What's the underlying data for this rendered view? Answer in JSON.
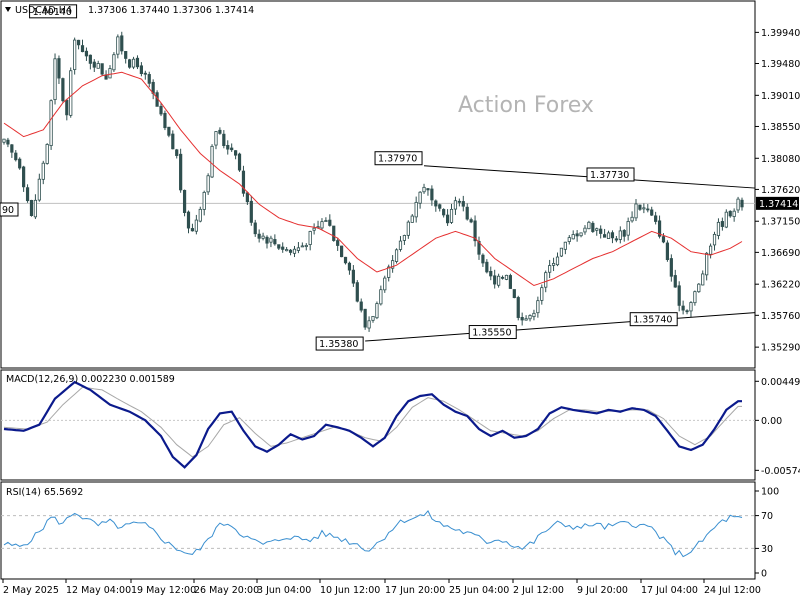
{
  "header": {
    "symbol": "USDCAD,H4",
    "ohlc": "1.37306 1.37440 1.37306 1.37414"
  },
  "watermark": "Action Forex",
  "colors": {
    "candles": "#2f4f4f",
    "ma": "#e53030",
    "macd": "#0b1a8c",
    "signal": "#a8a8a8",
    "rsi": "#3a8fd0",
    "trendline": "#000000",
    "price_line": "#c0c0c0"
  },
  "chart_data": [
    {
      "type": "candlestick",
      "title": "USDCAD,H4",
      "price_axis_labels": [
        "1.39940",
        "1.39480",
        "1.39010",
        "1.38550",
        "1.38080",
        "1.37620",
        "1.37150",
        "1.36690",
        "1.36220",
        "1.35760",
        "1.35290"
      ],
      "ylim": [
        1.351,
        1.403
      ],
      "current_price": "1.37414",
      "left_cut_label": "90",
      "date_labels": [
        "2 May 2025",
        "12 May 04:00",
        "19 May 12:00",
        "26 May 20:00",
        "3 Jun 04:00",
        "10 Jun 12:00",
        "17 Jun 20:00",
        "25 Jun 04:00",
        "2 Jul 12:00",
        "9 Jul 20:00",
        "17 Jul 04:00",
        "24 Jul 12:00"
      ],
      "annotations": [
        {
          "text": "1.40140",
          "bar": 19,
          "price": 1.4014
        },
        {
          "text": "1.37970",
          "bar": 107,
          "price": 1.3797
        },
        {
          "text": "1.37730",
          "bar": 161,
          "price": 1.3773
        },
        {
          "text": "1.35380",
          "bar": 92,
          "price": 1.3538
        },
        {
          "text": "1.35550",
          "bar": 131,
          "price": 1.3555
        },
        {
          "text": "1.35740",
          "bar": 172,
          "price": 1.3574
        }
      ],
      "trendlines": [
        {
          "from": {
            "bar": 107,
            "price": 1.3797
          },
          "to": {
            "bar": 198,
            "price": 1.3764
          }
        },
        {
          "from": {
            "bar": 92,
            "price": 1.3538
          },
          "to": {
            "bar": 198,
            "price": 1.358
          }
        }
      ],
      "close_keypoints": [
        [
          0,
          1.383
        ],
        [
          4,
          1.38
        ],
        [
          7,
          1.372
        ],
        [
          11,
          1.383
        ],
        [
          13,
          1.395
        ],
        [
          16,
          1.387
        ],
        [
          18,
          1.399
        ],
        [
          20,
          1.396
        ],
        [
          23,
          1.395
        ],
        [
          26,
          1.393
        ],
        [
          29,
          1.398
        ],
        [
          32,
          1.395
        ],
        [
          35,
          1.394
        ],
        [
          38,
          1.39
        ],
        [
          41,
          1.385
        ],
        [
          44,
          1.381
        ],
        [
          46,
          1.372
        ],
        [
          48,
          1.37
        ],
        [
          51,
          1.376
        ],
        [
          54,
          1.385
        ],
        [
          56,
          1.383
        ],
        [
          59,
          1.382
        ],
        [
          61,
          1.376
        ],
        [
          64,
          1.37
        ],
        [
          67,
          1.369
        ],
        [
          70,
          1.368
        ],
        [
          73,
          1.367
        ],
        [
          76,
          1.368
        ],
        [
          79,
          1.37
        ],
        [
          82,
          1.372
        ],
        [
          85,
          1.368
        ],
        [
          88,
          1.365
        ],
        [
          90,
          1.36
        ],
        [
          92,
          1.356
        ],
        [
          95,
          1.359
        ],
        [
          98,
          1.364
        ],
        [
          101,
          1.368
        ],
        [
          104,
          1.373
        ],
        [
          107,
          1.377
        ],
        [
          110,
          1.373
        ],
        [
          113,
          1.372
        ],
        [
          116,
          1.375
        ],
        [
          119,
          1.371
        ],
        [
          122,
          1.365
        ],
        [
          125,
          1.362
        ],
        [
          128,
          1.364
        ],
        [
          131,
          1.358
        ],
        [
          134,
          1.357
        ],
        [
          137,
          1.362
        ],
        [
          140,
          1.366
        ],
        [
          143,
          1.368
        ],
        [
          146,
          1.37
        ],
        [
          149,
          1.371
        ],
        [
          152,
          1.37
        ],
        [
          155,
          1.369
        ],
        [
          158,
          1.37
        ],
        [
          161,
          1.374
        ],
        [
          164,
          1.373
        ],
        [
          167,
          1.37
        ],
        [
          169,
          1.366
        ],
        [
          171,
          1.361
        ],
        [
          173,
          1.3585
        ],
        [
          175,
          1.3595
        ],
        [
          177,
          1.362
        ],
        [
          179,
          1.366
        ],
        [
          181,
          1.37
        ],
        [
          183,
          1.3715
        ],
        [
          185,
          1.373
        ],
        [
          187,
          1.3741
        ]
      ],
      "ma_keypoints": [
        [
          0,
          1.386
        ],
        [
          5,
          1.384
        ],
        [
          10,
          1.385
        ],
        [
          15,
          1.389
        ],
        [
          20,
          1.3915
        ],
        [
          25,
          1.393
        ],
        [
          30,
          1.3935
        ],
        [
          35,
          1.3925
        ],
        [
          40,
          1.389
        ],
        [
          45,
          1.385
        ],
        [
          50,
          1.3815
        ],
        [
          55,
          1.379
        ],
        [
          60,
          1.377
        ],
        [
          65,
          1.374
        ],
        [
          70,
          1.372
        ],
        [
          75,
          1.371
        ],
        [
          80,
          1.3705
        ],
        [
          85,
          1.369
        ],
        [
          90,
          1.366
        ],
        [
          95,
          1.364
        ],
        [
          100,
          1.365
        ],
        [
          105,
          1.367
        ],
        [
          110,
          1.369
        ],
        [
          115,
          1.37
        ],
        [
          120,
          1.369
        ],
        [
          125,
          1.366
        ],
        [
          130,
          1.364
        ],
        [
          135,
          1.362
        ],
        [
          140,
          1.363
        ],
        [
          145,
          1.3645
        ],
        [
          150,
          1.366
        ],
        [
          155,
          1.367
        ],
        [
          160,
          1.3685
        ],
        [
          165,
          1.37
        ],
        [
          170,
          1.369
        ],
        [
          175,
          1.367
        ],
        [
          180,
          1.3665
        ],
        [
          185,
          1.3675
        ],
        [
          188,
          1.3685
        ]
      ]
    },
    {
      "type": "line",
      "title": "MACD(12,26,9) 0.002230 0.001589",
      "axis_labels": [
        "0.004492",
        "0.00",
        "-0.005748"
      ],
      "ylim": [
        -0.0064,
        0.0051
      ],
      "series": [
        {
          "name": "MACD",
          "keypoints": [
            [
              0,
              -0.001
            ],
            [
              5,
              -0.0012
            ],
            [
              9,
              -0.0005
            ],
            [
              13,
              0.0025
            ],
            [
              18,
              0.0044
            ],
            [
              22,
              0.0035
            ],
            [
              27,
              0.0018
            ],
            [
              32,
              0.001
            ],
            [
              36,
              0.0
            ],
            [
              40,
              -0.0018
            ],
            [
              43,
              -0.0042
            ],
            [
              46,
              -0.0054
            ],
            [
              49,
              -0.004
            ],
            [
              52,
              -0.001
            ],
            [
              55,
              0.0008
            ],
            [
              58,
              0.001
            ],
            [
              61,
              -0.0012
            ],
            [
              64,
              -0.003
            ],
            [
              67,
              -0.0036
            ],
            [
              70,
              -0.0028
            ],
            [
              73,
              -0.0016
            ],
            [
              76,
              -0.0022
            ],
            [
              79,
              -0.0018
            ],
            [
              82,
              -0.0005
            ],
            [
              85,
              -0.0008
            ],
            [
              88,
              -0.0012
            ],
            [
              91,
              -0.002
            ],
            [
              94,
              -0.003
            ],
            [
              97,
              -0.002
            ],
            [
              100,
              0.0005
            ],
            [
              103,
              0.0022
            ],
            [
              106,
              0.0028
            ],
            [
              109,
              0.003
            ],
            [
              112,
              0.0018
            ],
            [
              115,
              0.001
            ],
            [
              118,
              0.0005
            ],
            [
              121,
              -0.001
            ],
            [
              124,
              -0.0018
            ],
            [
              127,
              -0.0012
            ],
            [
              130,
              -0.002
            ],
            [
              133,
              -0.0018
            ],
            [
              136,
              -0.001
            ],
            [
              139,
              0.0008
            ],
            [
              142,
              0.0015
            ],
            [
              145,
              0.0012
            ],
            [
              148,
              0.001
            ],
            [
              151,
              0.0008
            ],
            [
              154,
              0.0012
            ],
            [
              157,
              0.001
            ],
            [
              160,
              0.0014
            ],
            [
              163,
              0.0012
            ],
            [
              166,
              0.0005
            ],
            [
              169,
              -0.0012
            ],
            [
              172,
              -0.003
            ],
            [
              175,
              -0.0034
            ],
            [
              178,
              -0.0028
            ],
            [
              181,
              -0.001
            ],
            [
              184,
              0.0012
            ],
            [
              187,
              0.0022
            ]
          ]
        },
        {
          "name": "Signal",
          "keypoints": [
            [
              0,
              -0.0008
            ],
            [
              6,
              -0.001
            ],
            [
              11,
              -0.0002
            ],
            [
              15,
              0.0018
            ],
            [
              20,
              0.0038
            ],
            [
              25,
              0.0035
            ],
            [
              30,
              0.0022
            ],
            [
              35,
              0.001
            ],
            [
              40,
              -0.0008
            ],
            [
              44,
              -0.0028
            ],
            [
              48,
              -0.0042
            ],
            [
              52,
              -0.003
            ],
            [
              56,
              -0.0005
            ],
            [
              60,
              0.0003
            ],
            [
              64,
              -0.0015
            ],
            [
              68,
              -0.003
            ],
            [
              72,
              -0.0026
            ],
            [
              76,
              -0.002
            ],
            [
              80,
              -0.0014
            ],
            [
              84,
              -0.0008
            ],
            [
              88,
              -0.0012
            ],
            [
              92,
              -0.002
            ],
            [
              96,
              -0.0024
            ],
            [
              100,
              -0.0008
            ],
            [
              104,
              0.0015
            ],
            [
              108,
              0.0026
            ],
            [
              112,
              0.0022
            ],
            [
              116,
              0.0012
            ],
            [
              120,
              0.0
            ],
            [
              124,
              -0.0012
            ],
            [
              128,
              -0.0015
            ],
            [
              132,
              -0.0018
            ],
            [
              136,
              -0.0012
            ],
            [
              140,
              0.0002
            ],
            [
              144,
              0.0012
            ],
            [
              148,
              0.0012
            ],
            [
              152,
              0.001
            ],
            [
              156,
              0.0011
            ],
            [
              160,
              0.0012
            ],
            [
              164,
              0.0012
            ],
            [
              168,
              0.0002
            ],
            [
              172,
              -0.0018
            ],
            [
              176,
              -0.0028
            ],
            [
              180,
              -0.0018
            ],
            [
              184,
              0.0002
            ],
            [
              187,
              0.0016
            ]
          ]
        }
      ]
    },
    {
      "type": "line",
      "title": "RSI(14) 65.5692",
      "axis_labels": [
        "100",
        "70",
        "30",
        "0"
      ],
      "levels": [
        70,
        30
      ],
      "ylim": [
        0,
        100
      ],
      "series": [
        {
          "name": "RSI",
          "keypoints": [
            [
              0,
              35
            ],
            [
              4,
              32
            ],
            [
              8,
              45
            ],
            [
              12,
              68
            ],
            [
              15,
              60
            ],
            [
              18,
              75
            ],
            [
              21,
              65
            ],
            [
              24,
              58
            ],
            [
              27,
              62
            ],
            [
              30,
              55
            ],
            [
              33,
              60
            ],
            [
              36,
              58
            ],
            [
              39,
              48
            ],
            [
              42,
              35
            ],
            [
              45,
              28
            ],
            [
              48,
              22
            ],
            [
              51,
              34
            ],
            [
              54,
              55
            ],
            [
              57,
              62
            ],
            [
              60,
              50
            ],
            [
              63,
              40
            ],
            [
              66,
              35
            ],
            [
              69,
              38
            ],
            [
              72,
              45
            ],
            [
              75,
              42
            ],
            [
              78,
              40
            ],
            [
              81,
              48
            ],
            [
              84,
              45
            ],
            [
              87,
              40
            ],
            [
              90,
              35
            ],
            [
              93,
              28
            ],
            [
              96,
              40
            ],
            [
              99,
              55
            ],
            [
              102,
              65
            ],
            [
              105,
              68
            ],
            [
              108,
              72
            ],
            [
              111,
              60
            ],
            [
              114,
              55
            ],
            [
              117,
              50
            ],
            [
              120,
              45
            ],
            [
              123,
              38
            ],
            [
              126,
              42
            ],
            [
              129,
              36
            ],
            [
              132,
              30
            ],
            [
              135,
              38
            ],
            [
              138,
              52
            ],
            [
              141,
              60
            ],
            [
              144,
              58
            ],
            [
              147,
              55
            ],
            [
              150,
              60
            ],
            [
              153,
              56
            ],
            [
              156,
              58
            ],
            [
              159,
              62
            ],
            [
              162,
              58
            ],
            [
              165,
              55
            ],
            [
              168,
              40
            ],
            [
              171,
              26
            ],
            [
              173,
              22
            ],
            [
              176,
              30
            ],
            [
              179,
              45
            ],
            [
              182,
              60
            ],
            [
              185,
              68
            ],
            [
              188,
              65.5692
            ]
          ]
        }
      ]
    }
  ]
}
